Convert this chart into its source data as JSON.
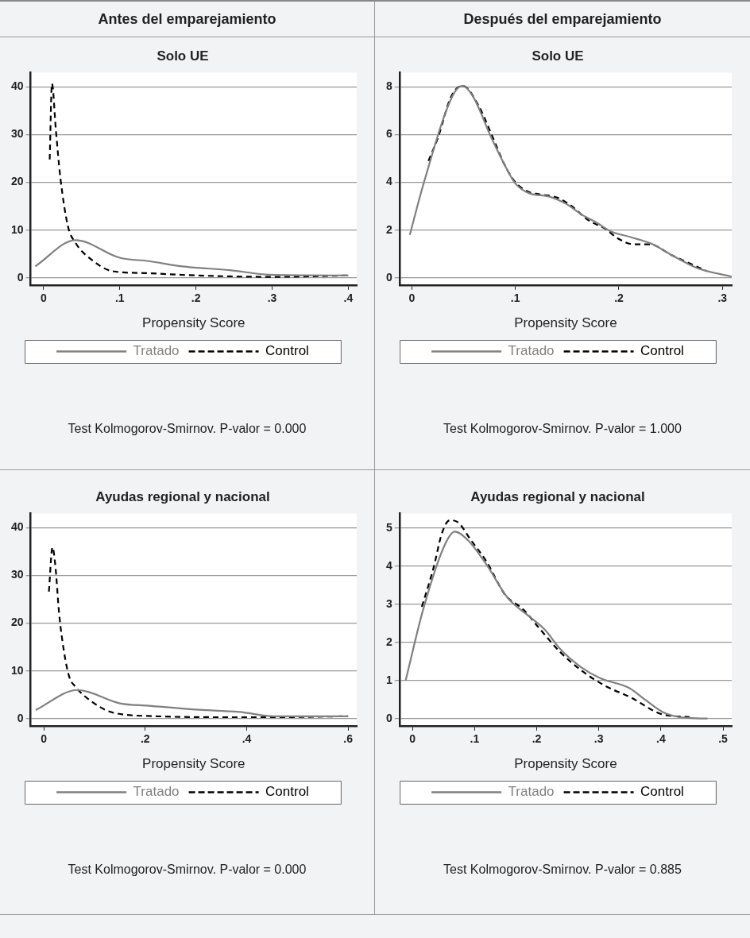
{
  "chart_data": [
    {
      "type": "line",
      "subtitle": "Antes del emparejamiento",
      "title": "Solo UE",
      "xlabel": "Propensity Score",
      "xlim": [
        -0.017,
        0.411
      ],
      "ylim": [
        -1.5,
        43
      ],
      "xticks": [
        {
          "value": 0,
          "label": "0"
        },
        {
          "value": 0.1,
          "label": ".1"
        },
        {
          "value": 0.2,
          "label": ".2"
        },
        {
          "value": 0.3,
          "label": ".3"
        },
        {
          "value": 0.4,
          "label": ".4"
        }
      ],
      "yticks": [
        0,
        10,
        20,
        30,
        40
      ],
      "grid": "y",
      "legend": "bottom",
      "marker": "none",
      "annotations": [
        "Test Kolmogorov-Smirnov. P-valor = 0.000"
      ],
      "series": [
        {
          "name": "Tratado",
          "color": "#808080",
          "line_style": "solid",
          "x": [
            -0.011,
            0.042,
            0.1,
            0.138,
            0.182,
            0.244,
            0.302,
            0.4
          ],
          "values": [
            2.4,
            7.9,
            4.2,
            3.5,
            2.4,
            1.6,
            0.6,
            0.5
          ]
        },
        {
          "name": "Control",
          "color": "#000000",
          "line_style": "dashed",
          "x": [
            0.008,
            0.011,
            0.016,
            0.022,
            0.032,
            0.042,
            0.063,
            0.09,
            0.131,
            0.2,
            0.302,
            0.4
          ],
          "values": [
            24.8,
            40.7,
            31.2,
            21,
            10.8,
            7.3,
            3.8,
            1.4,
            1.0,
            0.5,
            0.2,
            0.5
          ]
        }
      ]
    },
    {
      "type": "line",
      "subtitle": "Después del emparejamiento",
      "title": "Solo UE",
      "xlabel": "Propensity Score",
      "xlim": [
        -0.012,
        0.309
      ],
      "ylim": [
        -0.3,
        8.6
      ],
      "xticks": [
        {
          "value": 0,
          "label": "0"
        },
        {
          "value": 0.1,
          "label": ".1"
        },
        {
          "value": 0.2,
          "label": ".2"
        },
        {
          "value": 0.3,
          "label": ".3"
        }
      ],
      "yticks": [
        0,
        2,
        4,
        6,
        8
      ],
      "grid": "y",
      "legend": "bottom",
      "marker": "none",
      "annotations": [
        "Test Kolmogorov-Smirnov. P-valor = 1.000"
      ],
      "series": [
        {
          "name": "Tratado",
          "color": "#808080",
          "line_style": "solid",
          "x": [
            -0.002,
            0.011,
            0.039,
            0.049,
            0.059,
            0.077,
            0.09,
            0.1,
            0.113,
            0.133,
            0.149,
            0.164,
            0.179,
            0.192,
            0.212,
            0.233,
            0.251,
            0.276,
            0.309
          ],
          "values": [
            1.8,
            3.9,
            7.6,
            8.05,
            7.6,
            5.85,
            4.7,
            3.95,
            3.55,
            3.4,
            3.1,
            2.65,
            2.3,
            1.95,
            1.7,
            1.4,
            0.95,
            0.4,
            0.05
          ]
        },
        {
          "name": "Control",
          "color": "#000000",
          "line_style": "dashed",
          "x": [
            0.016,
            0.025,
            0.038,
            0.049,
            0.064,
            0.077,
            0.09,
            0.1,
            0.113,
            0.123,
            0.141,
            0.153,
            0.171,
            0.187,
            0.199,
            0.215,
            0.23,
            0.251,
            0.284
          ],
          "values": [
            4.9,
            5.85,
            7.6,
            8.05,
            7.25,
            6.0,
            4.7,
            4.0,
            3.6,
            3.5,
            3.35,
            3.05,
            2.4,
            2.05,
            1.65,
            1.4,
            1.4,
            0.95,
            0.3
          ]
        }
      ]
    },
    {
      "type": "line",
      "title": "Ayudas regional y nacional",
      "xlabel": "Propensity Score",
      "xlim": [
        -0.026,
        0.617
      ],
      "ylim": [
        -1.5,
        43
      ],
      "xticks": [
        {
          "value": 0,
          "label": "0"
        },
        {
          "value": 0.2,
          "label": ".2"
        },
        {
          "value": 0.4,
          "label": ".4"
        },
        {
          "value": 0.6,
          "label": ".6"
        }
      ],
      "yticks": [
        0,
        10,
        20,
        30,
        40
      ],
      "grid": "y",
      "legend": "bottom",
      "marker": "none",
      "annotations": [
        "Test Kolmogorov-Smirnov. P-valor = 0.000"
      ],
      "series": [
        {
          "name": "Tratado",
          "color": "#808080",
          "line_style": "solid",
          "x": [
            -0.016,
            0.066,
            0.15,
            0.207,
            0.299,
            0.386,
            0.453,
            0.6
          ],
          "values": [
            1.8,
            6,
            3.2,
            2.7,
            1.9,
            1.4,
            0.5,
            0.5
          ]
        },
        {
          "name": "Control",
          "color": "#000000",
          "line_style": "dashed",
          "x": [
            0.01,
            0.017,
            0.023,
            0.03,
            0.04,
            0.05,
            0.063,
            0.089,
            0.135,
            0.222,
            0.35,
            0.453,
            0.6
          ],
          "values": [
            26.6,
            35.9,
            31.7,
            22.2,
            13.9,
            8.8,
            6.6,
            4.0,
            1.3,
            0.5,
            0.3,
            0.3,
            0.5
          ]
        }
      ]
    },
    {
      "type": "line",
      "title": "Ayudas regional y nacional",
      "xlabel": "Propensity Score",
      "xlim": [
        -0.021,
        0.514
      ],
      "ylim": [
        -0.19,
        5.38
      ],
      "xticks": [
        {
          "value": 0,
          "label": "0"
        },
        {
          "value": 0.1,
          "label": ".1"
        },
        {
          "value": 0.2,
          "label": ".2"
        },
        {
          "value": 0.3,
          "label": ".3"
        },
        {
          "value": 0.4,
          "label": ".4"
        },
        {
          "value": 0.5,
          "label": ".5"
        }
      ],
      "yticks": [
        0,
        1,
        2,
        3,
        4,
        5
      ],
      "grid": "y",
      "legend": "bottom",
      "marker": "none",
      "annotations": [
        "Test Kolmogorov-Smirnov. P-valor = 0.885"
      ],
      "series": [
        {
          "name": "Tratado",
          "color": "#808080",
          "line_style": "solid",
          "x": [
            -0.011,
            0.017,
            0.051,
            0.068,
            0.089,
            0.119,
            0.153,
            0.187,
            0.213,
            0.238,
            0.272,
            0.302,
            0.349,
            0.374,
            0.404,
            0.438,
            0.475
          ],
          "values": [
            1.0,
            2.85,
            4.52,
            4.9,
            4.68,
            4.04,
            3.17,
            2.69,
            2.33,
            1.82,
            1.34,
            1.06,
            0.8,
            0.5,
            0.16,
            0.02,
            0
          ]
        },
        {
          "name": "Control",
          "color": "#000000",
          "line_style": "dashed",
          "x": [
            0.015,
            0.034,
            0.047,
            0.06,
            0.072,
            0.094,
            0.119,
            0.149,
            0.179,
            0.204,
            0.238,
            0.272,
            0.31,
            0.353,
            0.4,
            0.446
          ],
          "values": [
            2.93,
            3.96,
            4.84,
            5.2,
            5.16,
            4.68,
            4.12,
            3.25,
            2.85,
            2.37,
            1.74,
            1.26,
            0.86,
            0.54,
            0.12,
            0.04
          ]
        }
      ]
    }
  ]
}
